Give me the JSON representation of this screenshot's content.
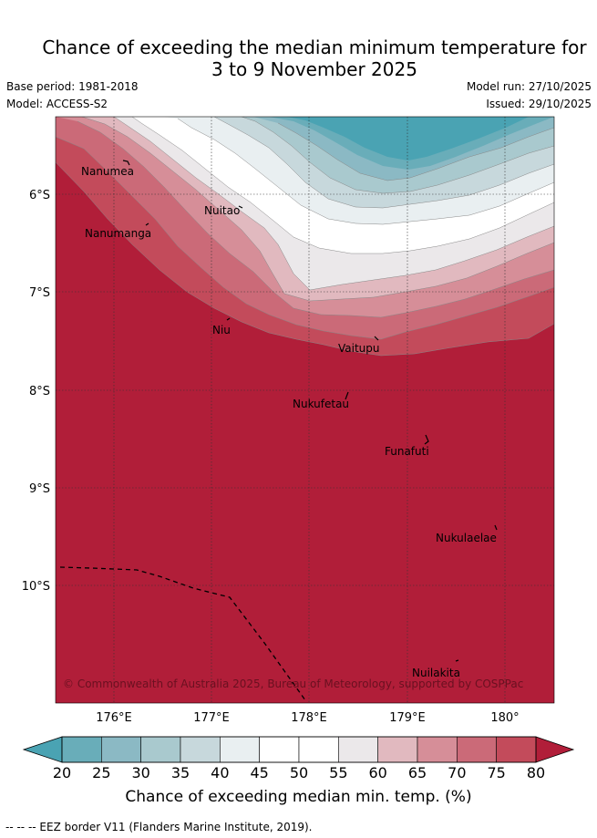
{
  "title": {
    "line1": "Chance of exceeding the median minimum temperature for",
    "line2": "3 to 9 November 2025"
  },
  "meta": {
    "base_period": "Base period: 1981-2018",
    "model": "Model: ACCESS-S2",
    "model_run": "Model run: 27/10/2025",
    "issued": "Issued: 29/10/2025"
  },
  "map": {
    "lat_labels": [
      "6°S",
      "7°S",
      "8°S",
      "9°S",
      "10°S"
    ],
    "lon_labels": [
      "176°E",
      "177°E",
      "178°E",
      "179°E",
      "180°"
    ],
    "places": [
      "Nanumea",
      "Nuitao",
      "Nanumanga",
      "Niu",
      "Vaitupu",
      "Nukufetau",
      "Funafuti",
      "Nukulaelae",
      "Nuilakita"
    ],
    "copyright": "© Commonwealth of Australia 2025, Bureau of Meteorology, supported by COSPPac"
  },
  "colorbar": {
    "ticks": [
      "20",
      "25",
      "30",
      "35",
      "40",
      "45",
      "50",
      "55",
      "60",
      "65",
      "70",
      "75",
      "80"
    ],
    "colors": [
      "#69adb9",
      "#8bb9c4",
      "#a9c9ce",
      "#c7d8dc",
      "#e9eff1",
      "#ffffff",
      "#ffffff",
      "#ebe8ea",
      "#e1b9bf",
      "#d68e98",
      "#cb6a78",
      "#c34b5b"
    ],
    "under_color": "#4aa3b3",
    "over_color": "#b11e39",
    "title": "Chance of exceeding median min. temp. (%)"
  },
  "footer": "--  --  -- EEZ border V11 (Flanders Marine Institute, 2019)."
}
